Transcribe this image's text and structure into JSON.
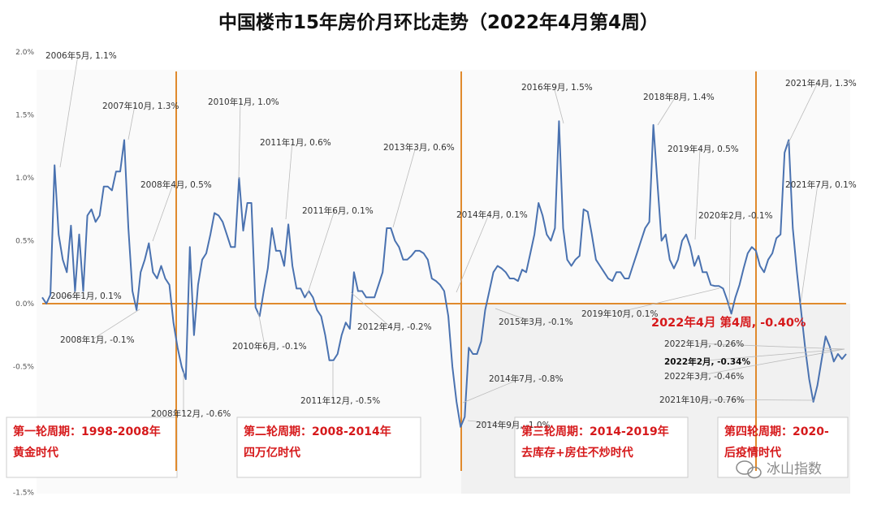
{
  "chart_data": {
    "type": "line",
    "title": "中国楼市15年房价月环比走势（2022年4月第4周）",
    "y_ticks": [
      "2.0%",
      "1.5%",
      "1.0%",
      "0.5%",
      "0.0%",
      "-0.5%",
      "-1.0%",
      "-1.5%"
    ],
    "ylim": [
      -1.5,
      2.0
    ],
    "x_start": "2006-01",
    "series": [
      {
        "color": "#4a72b0",
        "values": [
          0.05,
          0.0,
          0.07,
          1.1,
          0.55,
          0.35,
          0.25,
          0.62,
          0.1,
          0.55,
          0.1,
          0.7,
          0.75,
          0.65,
          0.7,
          0.93,
          0.93,
          0.9,
          1.05,
          1.05,
          1.3,
          0.6,
          0.1,
          -0.05,
          0.25,
          0.35,
          0.48,
          0.25,
          0.2,
          0.3,
          0.2,
          0.15,
          -0.15,
          -0.35,
          -0.5,
          -0.6,
          0.45,
          -0.25,
          0.15,
          0.35,
          0.4,
          0.55,
          0.72,
          0.7,
          0.65,
          0.55,
          0.45,
          0.45,
          1.0,
          0.58,
          0.8,
          0.8,
          -0.03,
          -0.1,
          0.1,
          0.28,
          0.6,
          0.42,
          0.42,
          0.3,
          0.63,
          0.3,
          0.12,
          0.12,
          0.05,
          0.1,
          0.05,
          -0.05,
          -0.1,
          -0.25,
          -0.45,
          -0.45,
          -0.4,
          -0.25,
          -0.15,
          -0.2,
          0.25,
          0.1,
          0.1,
          0.05,
          0.05,
          0.05,
          0.15,
          0.25,
          0.6,
          0.6,
          0.5,
          0.45,
          0.35,
          0.35,
          0.38,
          0.42,
          0.42,
          0.4,
          0.35,
          0.2,
          0.18,
          0.15,
          0.1,
          -0.1,
          -0.5,
          -0.78,
          -0.98,
          -0.9,
          -0.35,
          -0.4,
          -0.4,
          -0.3,
          -0.05,
          0.1,
          0.25,
          0.3,
          0.28,
          0.25,
          0.2,
          0.2,
          0.18,
          0.27,
          0.25,
          0.4,
          0.55,
          0.8,
          0.7,
          0.55,
          0.5,
          0.6,
          1.45,
          0.6,
          0.35,
          0.3,
          0.35,
          0.38,
          0.75,
          0.73,
          0.55,
          0.35,
          0.3,
          0.25,
          0.2,
          0.18,
          0.25,
          0.25,
          0.2,
          0.2,
          0.3,
          0.4,
          0.5,
          0.6,
          0.65,
          1.42,
          0.95,
          0.5,
          0.55,
          0.35,
          0.28,
          0.35,
          0.5,
          0.55,
          0.45,
          0.3,
          0.38,
          0.25,
          0.25,
          0.15,
          0.14,
          0.14,
          0.12,
          0.03,
          -0.08,
          0.05,
          0.15,
          0.28,
          0.4,
          0.45,
          0.42,
          0.3,
          0.25,
          0.35,
          0.4,
          0.52,
          0.55,
          1.2,
          1.3,
          0.6,
          0.25,
          -0.05,
          -0.35,
          -0.6,
          -0.78,
          -0.65,
          -0.45,
          -0.26,
          -0.34,
          -0.46,
          -0.4,
          -0.44,
          -0.4
        ]
      }
    ],
    "annotations": [
      {
        "text": "2006年5月, 1.1%"
      },
      {
        "text": "2007年10月, 1.3%"
      },
      {
        "text": "2008年4月, 0.5%"
      },
      {
        "text": "2006年1月, 0.1%"
      },
      {
        "text": "2008年1月, -0.1%"
      },
      {
        "text": "2008年12月, -0.6%"
      },
      {
        "text": "2010年1月, 1.0%"
      },
      {
        "text": "2011年1月, 0.6%"
      },
      {
        "text": "2011年6月, 0.1%"
      },
      {
        "text": "2010年6月, -0.1%"
      },
      {
        "text": "2011年12月, -0.5%"
      },
      {
        "text": "2013年3月, 0.6%"
      },
      {
        "text": "2012年4月, -0.2%"
      },
      {
        "text": "2014年4月, 0.1%"
      },
      {
        "text": "2014年7月, -0.8%"
      },
      {
        "text": "2014年9月, -1.0%"
      },
      {
        "text": "2015年3月, -0.1%"
      },
      {
        "text": "2016年9月, 1.5%"
      },
      {
        "text": "2018年8月, 1.4%"
      },
      {
        "text": "2019年4月, 0.5%"
      },
      {
        "text": "2019年10月, 0.1%"
      },
      {
        "text": "2020年2月, -0.1%"
      },
      {
        "text": "2021年4月, 1.3%"
      },
      {
        "text": "2021年7月, 0.1%"
      },
      {
        "text": "2022年1月, -0.26%"
      },
      {
        "text": "2022年2月, -0.34%"
      },
      {
        "text": "2022年3月, -0.46%"
      },
      {
        "text": "2021年10月, -0.76%"
      }
    ],
    "highlight_label": "2022年4月 第4周, -0.40%",
    "cycles": [
      {
        "line1": "第一轮周期：1998-2008年",
        "line2": "黄金时代"
      },
      {
        "line1": "第二轮周期：2008-2014年",
        "line2": "四万亿时代"
      },
      {
        "line1": "第三轮周期：2014-2019年",
        "line2": "去库存+房住不炒时代"
      },
      {
        "line1": "第四轮周期：2020-",
        "line2": "后疫情时代"
      }
    ],
    "watermark": "冰山指数",
    "colors": {
      "line": "#4a72b0",
      "divider": "#e08a2d",
      "zero_line": "#e08a2d",
      "label_red": "#d6191b",
      "box_border": "#cccccc",
      "leader": "#bbbbbb"
    }
  }
}
